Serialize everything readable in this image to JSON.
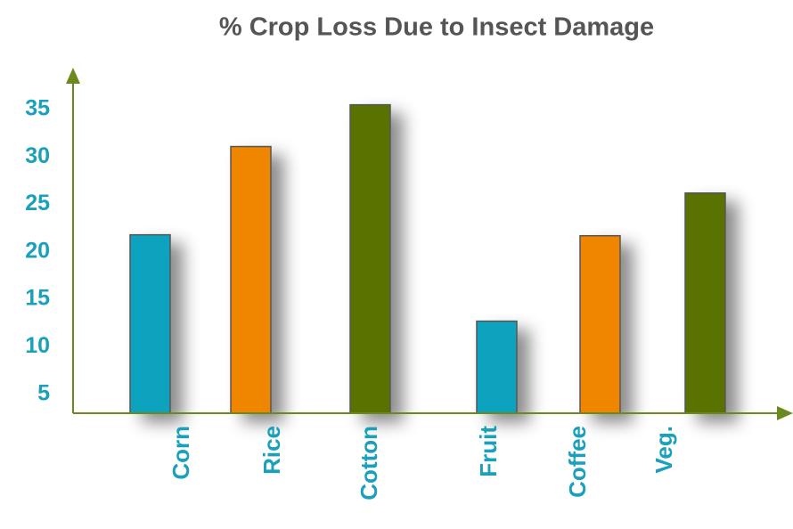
{
  "chart_data": {
    "type": "bar",
    "title": "% Crop Loss Due to Insect Damage",
    "categories": [
      "Corn",
      "Rice",
      "Cotton",
      "Fruit",
      "Coffee",
      "Veg."
    ],
    "values": [
      21.8,
      31.1,
      35.5,
      12.7,
      21.7,
      26.2
    ],
    "colors": [
      "#0fa3bf",
      "#f08500",
      "#5a7200",
      "#0fa3bf",
      "#f08500",
      "#5a7200"
    ],
    "ylim": [
      3,
      38
    ],
    "yticks": [
      5,
      10,
      15,
      20,
      25,
      30,
      35
    ],
    "grid": false
  }
}
